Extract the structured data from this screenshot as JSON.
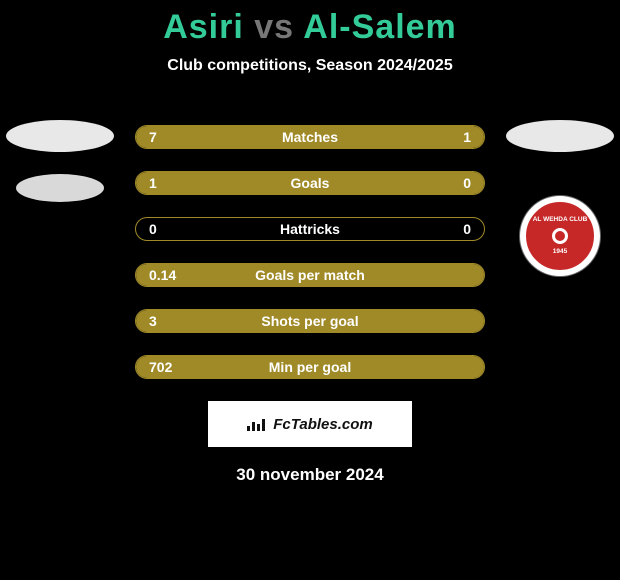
{
  "title": {
    "player1": "Asiri",
    "vs": "vs",
    "player2": "Al-Salem",
    "colors": {
      "accent": "#33cc99",
      "vs": "#666666",
      "text": "#ffffff"
    }
  },
  "subtitle": "Club competitions, Season 2024/2025",
  "left_icons": {
    "oval_color": "#e8e8e8",
    "oval2_color": "#e2e2e2"
  },
  "right_icons": {
    "oval_color": "#e8e8e8",
    "badge_bg": "#c62828",
    "badge_text": "AL WEHDA CLUB",
    "badge_year": "1945"
  },
  "stats": {
    "bar_color": "#a08a28",
    "border_color": "#a08a28",
    "rows": [
      {
        "label": "Matches",
        "left": "7",
        "right": "1",
        "left_pct": 87.5,
        "right_pct": 12.5,
        "left_color": "#a08a28",
        "right_color": "#a08a28"
      },
      {
        "label": "Goals",
        "left": "1",
        "right": "0",
        "left_pct": 100,
        "right_pct": 0,
        "left_color": "#a08a28",
        "right_color": "#a08a28"
      },
      {
        "label": "Hattricks",
        "left": "0",
        "right": "0",
        "left_pct": 0,
        "right_pct": 0,
        "left_color": "#a08a28",
        "right_color": "#a08a28"
      },
      {
        "label": "Goals per match",
        "left": "0.14",
        "right": "",
        "left_pct": 100,
        "right_pct": 0,
        "left_color": "#a08a28",
        "right_color": "#a08a28"
      },
      {
        "label": "Shots per goal",
        "left": "3",
        "right": "",
        "left_pct": 100,
        "right_pct": 0,
        "left_color": "#a08a28",
        "right_color": "#a08a28"
      },
      {
        "label": "Min per goal",
        "left": "702",
        "right": "",
        "left_pct": 100,
        "right_pct": 0,
        "left_color": "#a08a28",
        "right_color": "#a08a28"
      }
    ]
  },
  "logo": {
    "text": "FcTables.com",
    "bg": "#ffffff",
    "text_color": "#111111"
  },
  "date": "30 november 2024",
  "page_bg": "#000000"
}
